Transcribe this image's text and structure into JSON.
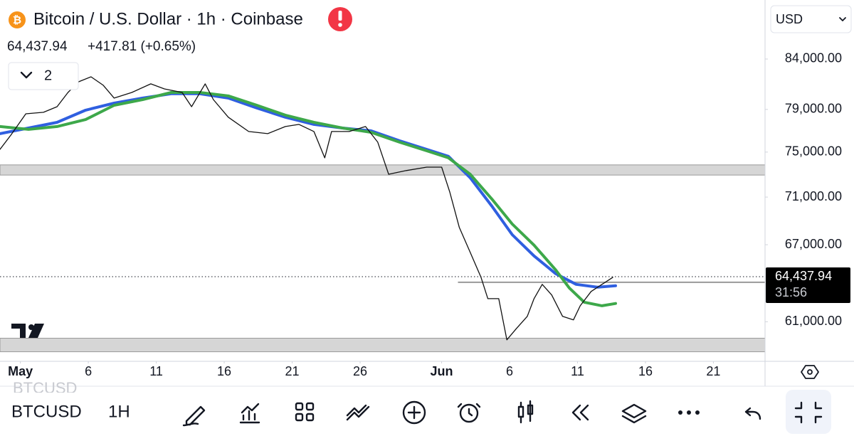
{
  "header": {
    "title": "Bitcoin / U.S. Dollar · 1h · Coinbase",
    "change": "+417.81 (+0.65%)",
    "indicators": "2",
    "currency": "USD"
  },
  "toolbar": {
    "symbol": "BTCUSD",
    "interval": "1H"
  },
  "chart_data": {
    "type": "line",
    "log_scale": true,
    "grid": false,
    "xlim": [
      -0.5,
      55.8
    ],
    "ylim": [
      58130,
      90260
    ],
    "xticks": [
      {
        "value": 1,
        "label": "May"
      },
      6,
      11,
      16,
      21,
      26,
      {
        "value": 32,
        "label": "Jun"
      },
      {
        "value": 37,
        "label": "6"
      },
      {
        "value": 42,
        "label": "11"
      },
      {
        "value": 47,
        "label": "16"
      },
      {
        "value": 52,
        "label": "21"
      }
    ],
    "yticks": [
      {
        "value": 84000,
        "label": "84,000.00"
      },
      {
        "value": 79000,
        "label": "79,000.00"
      },
      {
        "value": 75000,
        "label": "75,000.00"
      },
      {
        "value": 71000,
        "label": "71,000.00"
      },
      {
        "value": 67000,
        "label": "67,000.00"
      },
      {
        "value": 61000,
        "label": "61,000.00"
      }
    ],
    "last_price": {
      "value": 64437.94,
      "label": "64,437.94"
    },
    "countdown": "31:56",
    "zones": [
      {
        "from": 72930,
        "to": 73840
      },
      {
        "from": 58810,
        "to": 59790
      }
    ],
    "levels": [
      {
        "value": 64000,
        "x_from": 33.2
      }
    ],
    "series": [
      {
        "color": "#111111",
        "x": [
          -0.5,
          0.3,
          1.4,
          2.7,
          3.7,
          4.5,
          5.3,
          6.2,
          7.1,
          7.9,
          9.2,
          10.6,
          11.6,
          12.9,
          13.6,
          14.6,
          15.2,
          16.3,
          17.8,
          19.2,
          20.5,
          21.5,
          22.6,
          23.4,
          23.9,
          25.2,
          26.4,
          27.3,
          28.1,
          29.4,
          30.9,
          32.0,
          32.6,
          33.3,
          34.1,
          34.9,
          35.4,
          36.2,
          36.8,
          37.5,
          38.3,
          38.8,
          39.4,
          40.1,
          40.9,
          41.7,
          42.2,
          43.0,
          43.8,
          44.6
        ],
        "values": [
          75250,
          76570,
          78580,
          78720,
          79260,
          80650,
          81710,
          82200,
          81360,
          80100,
          80650,
          81500,
          81000,
          80650,
          79260,
          81500,
          79950,
          78250,
          76900,
          76700,
          77370,
          77570,
          76900,
          74480,
          76900,
          76900,
          77370,
          75910,
          73000,
          73330,
          73640,
          73640,
          71440,
          68420,
          66380,
          64390,
          62740,
          62740,
          59670,
          60500,
          61400,
          62740,
          63840,
          63020,
          61400,
          61140,
          62200,
          63290,
          63840,
          64390
        ]
      },
      {
        "color": "#2f5fe0",
        "x": [
          -0.5,
          1.6,
          3.7,
          5.8,
          7.9,
          10.0,
          12.1,
          14.2,
          16.3,
          18.4,
          20.5,
          22.6,
          24.7,
          26.8,
          28.9,
          30.9,
          32.5,
          34.1,
          35.7,
          37.2,
          38.8,
          40.4,
          41.9,
          43.5,
          44.8
        ],
        "values": [
          76700,
          77230,
          77770,
          78930,
          79610,
          80100,
          80520,
          80520,
          80100,
          79130,
          78250,
          77570,
          77230,
          76970,
          76040,
          75250,
          74610,
          72690,
          70220,
          67820,
          66090,
          64670,
          63840,
          63620,
          63730
        ]
      },
      {
        "color": "#3da84a",
        "x": [
          -0.5,
          1.6,
          3.7,
          5.8,
          7.9,
          10.0,
          12.1,
          14.2,
          16.3,
          18.4,
          20.5,
          22.6,
          24.7,
          26.8,
          28.9,
          30.9,
          32.5,
          34.1,
          35.7,
          37.2,
          38.8,
          40.4,
          41.4,
          42.5,
          43.8,
          44.8
        ],
        "values": [
          77370,
          77100,
          77370,
          78030,
          79400,
          79950,
          80650,
          80650,
          80310,
          79400,
          78450,
          77770,
          77230,
          76830,
          75910,
          75120,
          74480,
          73000,
          70830,
          68710,
          66960,
          64960,
          63560,
          62470,
          62200,
          62370
        ]
      }
    ]
  }
}
